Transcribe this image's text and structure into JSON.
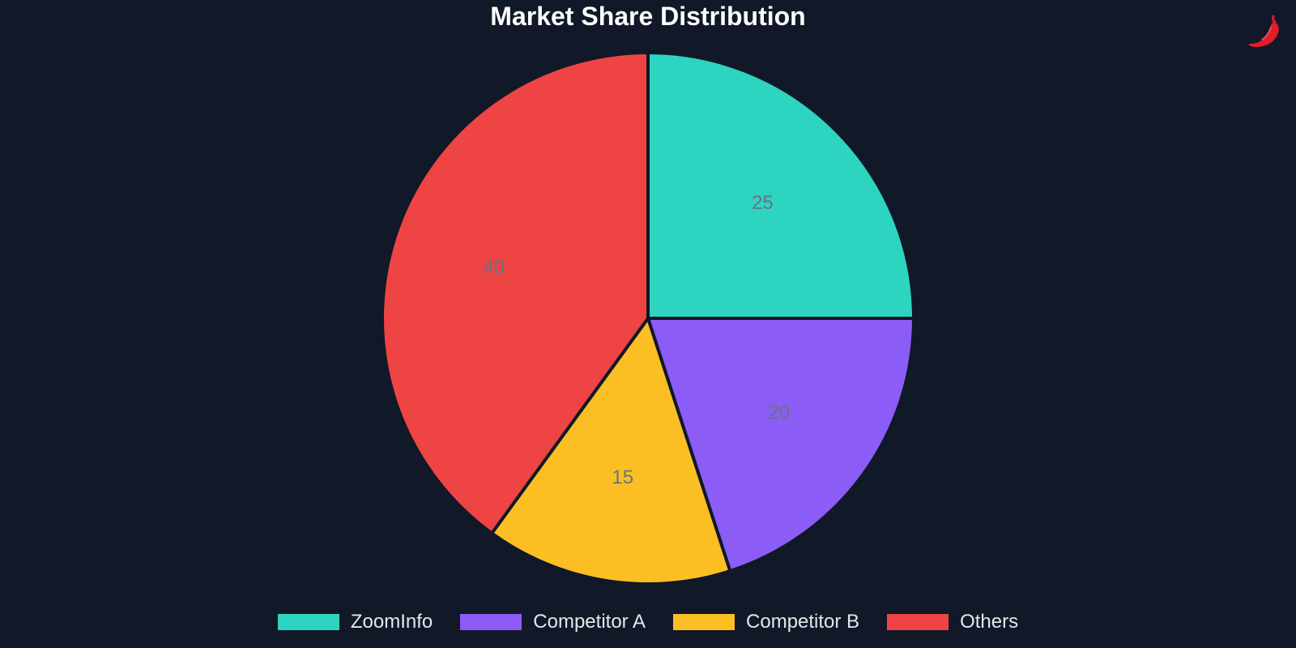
{
  "chart_data": {
    "type": "pie",
    "title": "Market Share Distribution",
    "categories": [
      "ZoomInfo",
      "Competitor A",
      "Competitor B",
      "Others"
    ],
    "values": [
      25,
      20,
      15,
      40
    ],
    "colors": [
      "#2dd4bf",
      "#8b5cf6",
      "#fbbf24",
      "#ef4444"
    ],
    "label_color": "#6b7280",
    "legend_position": "bottom-center",
    "start_angle": "12 o'clock",
    "direction": "clockwise"
  },
  "theme": {
    "background": "#111827",
    "slice_border": "#111827",
    "title_color": "#ffffff",
    "legend_text": "#e5e7eb"
  },
  "logo": {
    "icon": "chili-pepper-icon",
    "color": "#e11d2a"
  }
}
